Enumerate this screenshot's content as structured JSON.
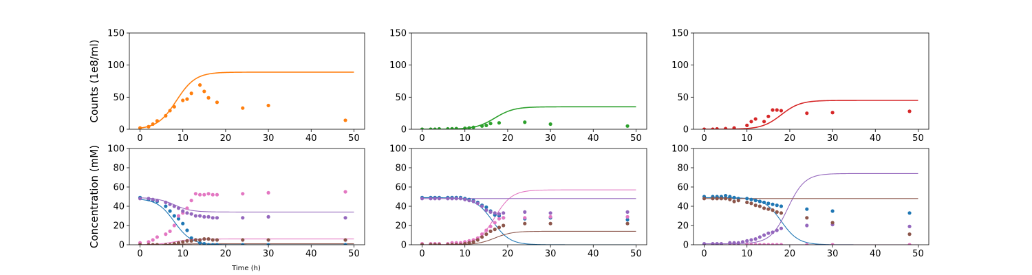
{
  "figure": {
    "ylabel_top": "Counts (1e8/ml)",
    "ylabel_bottom": "Concentration (mM)",
    "xlabel_bottom_left": "Time (h)"
  },
  "chart_data": [
    {
      "type": "scatter",
      "xlim": [
        -2.5,
        52.5
      ],
      "ylim": [
        0,
        150
      ],
      "xticks": [
        0,
        10,
        20,
        30,
        40,
        50
      ],
      "yticks": [
        0,
        50,
        100,
        150
      ],
      "grid": false,
      "series": [
        {
          "color": "#ff7f0e",
          "x": [
            0,
            2,
            3,
            4,
            6,
            7,
            8,
            10,
            11,
            12,
            14,
            15,
            16,
            18,
            24,
            30,
            48
          ],
          "y": [
            2,
            4,
            8,
            13,
            21,
            29,
            35,
            45,
            47,
            56,
            69,
            59,
            49,
            42,
            33,
            37,
            14
          ],
          "fit": {
            "K": 89,
            "r": 0.45,
            "t0": 8.5
          }
        }
      ]
    },
    {
      "type": "scatter",
      "xlim": [
        -2.5,
        52.5
      ],
      "ylim": [
        0,
        150
      ],
      "xticks": [
        0,
        10,
        20,
        30,
        40,
        50
      ],
      "yticks": [
        0,
        50,
        100,
        150
      ],
      "grid": false,
      "series": [
        {
          "color": "#2ca02c",
          "x": [
            0,
            2,
            3,
            4,
            6,
            7,
            8,
            10,
            11,
            12,
            14,
            15,
            16,
            18,
            24,
            30,
            48
          ],
          "y": [
            0,
            0,
            0,
            0.5,
            0.5,
            0.7,
            1,
            1.5,
            2,
            3,
            5,
            6,
            9,
            10,
            11,
            8,
            5
          ],
          "fit": {
            "K": 35,
            "r": 0.45,
            "t0": 17
          }
        }
      ]
    },
    {
      "type": "scatter",
      "xlim": [
        -2.5,
        52.5
      ],
      "ylim": [
        0,
        150
      ],
      "xticks": [
        0,
        10,
        20,
        30,
        40,
        50
      ],
      "yticks": [
        0,
        50,
        100,
        150
      ],
      "grid": false,
      "series": [
        {
          "color": "#d62728",
          "x": [
            0,
            2,
            3,
            5,
            7,
            10,
            11,
            12,
            14,
            15,
            16,
            17,
            18,
            24,
            30,
            48
          ],
          "y": [
            0,
            0,
            0.5,
            1,
            2,
            6,
            12,
            16,
            12,
            20,
            30,
            30,
            29,
            25,
            26,
            28
          ],
          "fit": {
            "K": 45,
            "r": 0.45,
            "t0": 18
          }
        }
      ]
    },
    {
      "type": "scatter",
      "xlim": [
        -2.5,
        52.5
      ],
      "ylim": [
        0,
        100
      ],
      "xticks": [
        0,
        10,
        20,
        30,
        40,
        50
      ],
      "yticks": [
        0,
        20,
        40,
        60,
        80,
        100
      ],
      "grid": false,
      "series": [
        {
          "color": "#1f77b4",
          "x": [
            0,
            2,
            3,
            4,
            6,
            7,
            8,
            9,
            10,
            11,
            12,
            13,
            14,
            15,
            16,
            17,
            18,
            24,
            30,
            48
          ],
          "y": [
            49,
            47,
            46,
            45,
            40,
            35,
            30,
            27,
            22,
            15,
            7,
            5,
            2,
            1,
            0,
            0,
            0,
            0,
            0,
            0
          ],
          "fit": {
            "a": 48,
            "b": 0,
            "t0": 8,
            "r": 0.5
          }
        },
        {
          "color": "#e377c2",
          "x": [
            0,
            2,
            3,
            4,
            6,
            7,
            8,
            9,
            10,
            11,
            12,
            13,
            14,
            15,
            16,
            17,
            18,
            24,
            30,
            48
          ],
          "y": [
            2,
            3,
            5,
            8,
            11,
            14,
            20,
            30,
            33,
            38,
            46,
            53,
            52,
            52,
            53,
            52,
            52,
            53,
            54,
            55
          ],
          "fit": {
            "a": 0,
            "b": 6,
            "t0": 8,
            "r": 0.5
          }
        },
        {
          "color": "#9467bd",
          "x": [
            0,
            2,
            3,
            4,
            6,
            7,
            8,
            9,
            10,
            11,
            12,
            13,
            14,
            15,
            16,
            17,
            18,
            24,
            30,
            48
          ],
          "y": [
            48,
            48,
            47,
            46,
            44,
            42,
            40,
            38,
            35,
            33,
            32,
            30,
            30,
            29,
            29,
            28,
            28,
            28,
            29,
            28
          ],
          "fit": {
            "a": 49,
            "b": 34,
            "t0": 8,
            "r": 0.5
          }
        },
        {
          "color": "#8c564b",
          "x": [
            0,
            2,
            3,
            4,
            6,
            7,
            8,
            9,
            10,
            11,
            12,
            13,
            14,
            15,
            16,
            17,
            18,
            24,
            30,
            48
          ],
          "y": [
            0,
            0,
            0,
            0,
            0,
            0,
            1,
            2,
            3,
            4,
            4,
            5,
            5,
            6,
            6,
            5,
            5,
            5,
            5,
            5
          ],
          "fit": {
            "a": 0,
            "b": 1,
            "t0": 8,
            "r": 0.5
          }
        }
      ]
    },
    {
      "type": "scatter",
      "xlim": [
        -2.5,
        52.5
      ],
      "ylim": [
        0,
        100
      ],
      "xticks": [
        0,
        10,
        20,
        30,
        40,
        50
      ],
      "yticks": [
        0,
        20,
        40,
        60,
        80,
        100
      ],
      "grid": false,
      "series": [
        {
          "color": "#1f77b4",
          "x": [
            0,
            2,
            3,
            4,
            6,
            7,
            8,
            9,
            10,
            11,
            12,
            13,
            14,
            15,
            16,
            17,
            18,
            19,
            24,
            30,
            48
          ],
          "y": [
            49,
            49,
            49,
            49,
            49,
            49,
            49,
            49,
            48,
            47,
            46,
            44,
            41,
            39,
            35,
            31,
            30,
            28,
            27,
            28,
            26
          ],
          "fit": {
            "a": 49,
            "b": 0,
            "t0": 16.5,
            "r": 0.5
          }
        },
        {
          "color": "#e377c2",
          "x": [
            0,
            2,
            3,
            4,
            6,
            7,
            8,
            9,
            10,
            11,
            12,
            13,
            14,
            15,
            16,
            17,
            18,
            19,
            24,
            30,
            48
          ],
          "y": [
            1,
            1,
            1,
            1,
            1,
            2,
            2,
            2,
            3,
            4,
            5,
            7,
            11,
            15,
            19,
            23,
            27,
            28,
            28,
            29,
            29
          ],
          "fit": {
            "a": 0,
            "b": 57,
            "t0": 17,
            "r": 0.5
          }
        },
        {
          "color": "#9467bd",
          "x": [
            0,
            2,
            3,
            4,
            6,
            7,
            8,
            9,
            10,
            11,
            12,
            13,
            14,
            15,
            16,
            17,
            18,
            19,
            24,
            30,
            48
          ],
          "y": [
            48,
            48,
            48,
            48,
            48,
            48,
            48,
            48,
            47,
            46,
            45,
            43,
            40,
            36,
            34,
            33,
            32,
            33,
            34,
            33,
            34
          ],
          "fit": {
            "a": 48,
            "b": 48,
            "t0": 17,
            "r": 0.5
          }
        },
        {
          "color": "#8c564b",
          "x": [
            0,
            2,
            3,
            4,
            6,
            7,
            8,
            9,
            10,
            11,
            12,
            13,
            14,
            15,
            16,
            17,
            18,
            19,
            24,
            30,
            48
          ],
          "y": [
            0,
            0,
            0,
            0,
            0,
            0,
            0,
            0,
            1,
            2,
            3,
            5,
            8,
            11,
            14,
            16,
            18,
            20,
            22,
            22,
            22
          ],
          "fit": {
            "a": 0,
            "b": 14,
            "t0": 17,
            "r": 0.5
          }
        }
      ]
    },
    {
      "type": "scatter",
      "xlim": [
        -2.5,
        52.5
      ],
      "ylim": [
        0,
        100
      ],
      "xticks": [
        0,
        10,
        20,
        30,
        40,
        50
      ],
      "yticks": [
        0,
        20,
        40,
        60,
        80,
        100
      ],
      "grid": false,
      "series": [
        {
          "color": "#1f77b4",
          "x": [
            0,
            2,
            3,
            4,
            5,
            6,
            7,
            8,
            10,
            11,
            12,
            13,
            14,
            15,
            16,
            17,
            18,
            24,
            30,
            48
          ],
          "y": [
            50,
            50,
            50,
            50,
            51,
            50,
            49,
            48,
            48,
            47,
            46,
            45,
            44,
            43,
            42,
            41,
            40,
            37,
            35,
            33
          ],
          "fit": {
            "a": 49,
            "b": 0,
            "t0": 18,
            "r": 0.5
          }
        },
        {
          "color": "#e377c2",
          "x": [
            0,
            2,
            3,
            4,
            6,
            7,
            8,
            10,
            11,
            12,
            13,
            14,
            15,
            16,
            17,
            18,
            24,
            30,
            48
          ],
          "y": [
            0,
            0,
            0,
            0,
            0,
            0,
            0,
            0,
            0,
            0,
            0,
            0,
            0,
            0,
            0,
            0,
            0,
            0,
            0
          ],
          "fit": {
            "a": 0,
            "b": 0,
            "t0": 18,
            "r": 0.5
          }
        },
        {
          "color": "#9467bd",
          "x": [
            0,
            2,
            3,
            4,
            6,
            7,
            8,
            9,
            10,
            11,
            12,
            13,
            14,
            15,
            16,
            17,
            18,
            24,
            30,
            48
          ],
          "y": [
            1,
            1,
            1,
            1,
            2,
            2,
            2,
            3,
            4,
            5,
            6,
            8,
            10,
            12,
            13,
            15,
            17,
            20,
            21,
            19
          ],
          "fit": {
            "a": 1,
            "b": 74,
            "t0": 19.5,
            "r": 0.5
          }
        },
        {
          "color": "#8c564b",
          "x": [
            0,
            2,
            3,
            4,
            5,
            6,
            7,
            8,
            10,
            11,
            12,
            13,
            14,
            15,
            16,
            17,
            18,
            24,
            30,
            48
          ],
          "y": [
            48,
            48,
            48,
            48,
            48,
            47,
            45,
            46,
            44,
            43,
            41,
            40,
            38,
            37,
            36,
            34,
            33,
            28,
            23,
            11
          ],
          "fit": {
            "a": 48,
            "b": 48,
            "t0": 18,
            "r": 0.5
          }
        }
      ]
    }
  ]
}
